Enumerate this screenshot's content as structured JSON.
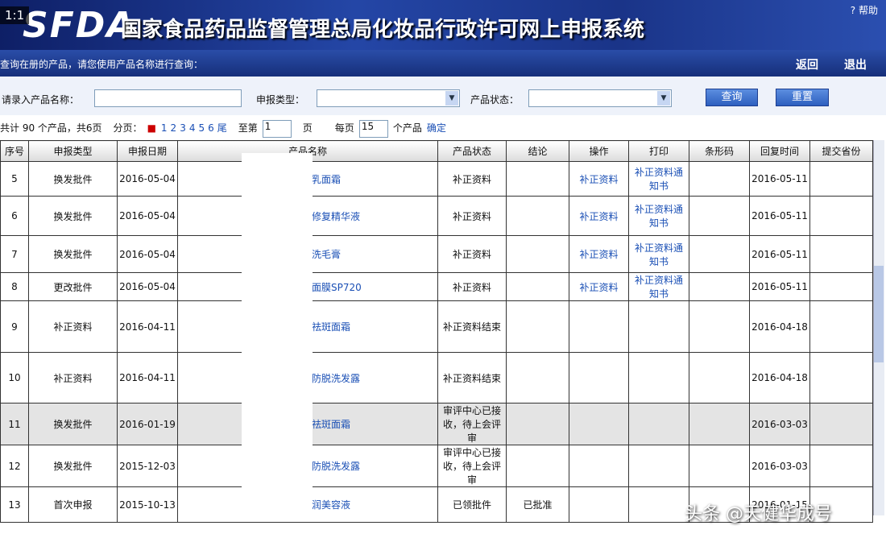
{
  "header": {
    "badge": "1:1",
    "logo": "SFDA",
    "title": "国家食品药品监督管理总局化妆品行政许可网上申报系统",
    "help": "帮助"
  },
  "toolbar": {
    "hint": "查询在册的产品，请您使用产品名称进行查询：",
    "links": [
      "返回",
      "退出"
    ]
  },
  "search": {
    "name_label": "请录入产品名称：",
    "type_label": "申报类型：",
    "status_label": "产品状态：",
    "buttons": [
      "查询",
      "重置"
    ]
  },
  "pagination": {
    "summary": "共计 90 个产品，共6页",
    "pages_label": "分页：",
    "pages": [
      "1",
      "2",
      "3",
      "4",
      "5",
      "6"
    ],
    "last": "尾",
    "goto_label": "至第",
    "goto_value": "1",
    "page_unit": "页",
    "per_page_label": "每页",
    "per_page_value": "15",
    "per_page_unit": "个产品",
    "confirm": "确定"
  },
  "table": {
    "columns": [
      "序号",
      "申报类型",
      "申报日期",
      "产品名称",
      "产品状态",
      "结论",
      "操作",
      "打印",
      "条形码",
      "回复时间",
      "提交省份"
    ],
    "rows": [
      [
        5,
        "换发批件",
        "2016-05-04",
        "乳面霜",
        "补正资料",
        null,
        "补正资料",
        "补正资料通知书",
        null,
        "2016-05-11",
        null
      ],
      [
        6,
        "换发批件",
        "2016-05-04",
        "修复精华液",
        "补正资料",
        null,
        "补正资料",
        "补正资料通知书",
        null,
        "2016-05-11",
        null
      ],
      [
        7,
        "换发批件",
        "2016-05-04",
        "洗毛膏",
        "补正资料",
        null,
        "补正资料",
        "补正资料通知书",
        null,
        "2016-05-11",
        null
      ],
      [
        8,
        "更改批件",
        "2016-05-04",
        "面膜SP720",
        "补正资料",
        null,
        "补正资料",
        "补正资料通知书",
        null,
        "2016-05-11",
        null
      ],
      [
        9,
        "补正资料",
        "2016-04-11",
        "祛斑面霜",
        "补正资料结束",
        null,
        null,
        null,
        null,
        "2016-04-18",
        null
      ],
      [
        10,
        "补正资料",
        "2016-04-11",
        "防脱洗发露",
        "补正资料结束",
        null,
        null,
        null,
        null,
        "2016-04-18",
        null
      ],
      [
        11,
        "换发批件",
        "2016-01-19",
        "祛斑面霜",
        "审评中心已接收，待上会评审",
        null,
        null,
        null,
        null,
        "2016-03-03",
        null
      ],
      [
        12,
        "换发批件",
        "2015-12-03",
        "防脱洗发露",
        "审评中心已接收，待上会评审",
        null,
        null,
        null,
        null,
        "2016-03-03",
        null
      ],
      [
        13,
        "首次申报",
        "2015-10-13",
        "润美容液",
        "已领批件",
        "已批准",
        null,
        null,
        null,
        "2016-01-15",
        null
      ]
    ]
  },
  "watermark": "头条 @天健华成号"
}
